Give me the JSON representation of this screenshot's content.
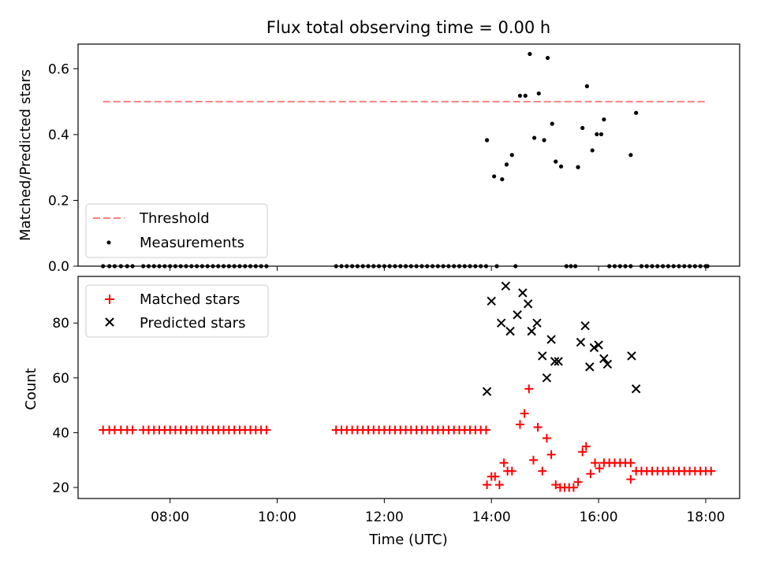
{
  "title": "Flux total observing time = 0.00 h",
  "xlabel": "Time (UTC)",
  "colors": {
    "threshold": "#ff8080",
    "measurements": "#000000",
    "matched": "#ff0000",
    "predicted": "#000000"
  },
  "chart_data": [
    {
      "type": "scatter",
      "title": "Flux total observing time = 0.00 h",
      "xlabel": "",
      "ylabel": "Matched/Predicted stars",
      "xlim": [
        "06:17",
        "18:38"
      ],
      "ylim": [
        0.0,
        0.675
      ],
      "yticks": [
        0.0,
        0.2,
        0.4,
        0.6
      ],
      "yticklabels": [
        "0.0",
        "0.2",
        "0.4",
        "0.6"
      ],
      "legend": {
        "placement": "lower-left",
        "entries": [
          "Threshold",
          "Measurements"
        ]
      },
      "threshold": {
        "name": "Threshold",
        "y": 0.5,
        "x": [
          "06:45",
          "18:00"
        ]
      },
      "series": [
        {
          "name": "Measurements",
          "points": [
            [
              "06:45",
              0
            ],
            [
              "06:52",
              0
            ],
            [
              "06:58",
              0
            ],
            [
              "07:05",
              0
            ],
            [
              "07:12",
              0
            ],
            [
              "07:18",
              0
            ],
            [
              "07:30",
              0
            ],
            [
              "07:36",
              0
            ],
            [
              "07:42",
              0
            ],
            [
              "07:48",
              0
            ],
            [
              "07:54",
              0
            ],
            [
              "08:00",
              0
            ],
            [
              "08:06",
              0
            ],
            [
              "08:12",
              0
            ],
            [
              "08:18",
              0
            ],
            [
              "08:24",
              0
            ],
            [
              "08:30",
              0
            ],
            [
              "08:36",
              0
            ],
            [
              "08:42",
              0
            ],
            [
              "08:48",
              0
            ],
            [
              "08:54",
              0
            ],
            [
              "09:00",
              0
            ],
            [
              "09:06",
              0
            ],
            [
              "09:12",
              0
            ],
            [
              "09:18",
              0
            ],
            [
              "09:24",
              0
            ],
            [
              "09:30",
              0
            ],
            [
              "09:36",
              0
            ],
            [
              "09:42",
              0
            ],
            [
              "09:48",
              0
            ],
            [
              "11:06",
              0
            ],
            [
              "11:12",
              0
            ],
            [
              "11:18",
              0
            ],
            [
              "11:24",
              0
            ],
            [
              "11:30",
              0
            ],
            [
              "11:36",
              0
            ],
            [
              "11:42",
              0
            ],
            [
              "11:48",
              0
            ],
            [
              "11:54",
              0
            ],
            [
              "12:00",
              0
            ],
            [
              "12:06",
              0
            ],
            [
              "12:12",
              0
            ],
            [
              "12:18",
              0
            ],
            [
              "12:24",
              0
            ],
            [
              "12:30",
              0
            ],
            [
              "12:36",
              0
            ],
            [
              "12:42",
              0
            ],
            [
              "12:48",
              0
            ],
            [
              "12:54",
              0
            ],
            [
              "13:00",
              0
            ],
            [
              "13:06",
              0
            ],
            [
              "13:12",
              0
            ],
            [
              "13:18",
              0
            ],
            [
              "13:24",
              0
            ],
            [
              "13:30",
              0
            ],
            [
              "13:36",
              0
            ],
            [
              "13:42",
              0
            ],
            [
              "13:48",
              0
            ],
            [
              "13:54",
              0
            ],
            [
              "13:55",
              0.383
            ],
            [
              "14:03",
              0.273
            ],
            [
              "14:06",
              0
            ],
            [
              "14:12",
              0.264
            ],
            [
              "14:17",
              0.309
            ],
            [
              "14:23",
              0.338
            ],
            [
              "14:27",
              0
            ],
            [
              "14:32",
              0.518
            ],
            [
              "14:38",
              0.518
            ],
            [
              "14:43",
              0.645
            ],
            [
              "14:48",
              0.39
            ],
            [
              "14:53",
              0.525
            ],
            [
              "14:59",
              0.383
            ],
            [
              "15:03",
              0.633
            ],
            [
              "15:08",
              0.433
            ],
            [
              "15:12",
              0.318
            ],
            [
              "15:18",
              0.303
            ],
            [
              "15:24",
              0
            ],
            [
              "15:29",
              0
            ],
            [
              "15:34",
              0
            ],
            [
              "15:37",
              0.301
            ],
            [
              "15:42",
              0.42
            ],
            [
              "15:47",
              0.547
            ],
            [
              "15:53",
              0.352
            ],
            [
              "15:58",
              0.401
            ],
            [
              "16:03",
              0.401
            ],
            [
              "16:06",
              0.446
            ],
            [
              "16:12",
              0
            ],
            [
              "16:18",
              0
            ],
            [
              "16:24",
              0
            ],
            [
              "16:30",
              0
            ],
            [
              "16:36",
              0
            ],
            [
              "16:36",
              0.338
            ],
            [
              "16:42",
              0.466
            ],
            [
              "16:48",
              0
            ],
            [
              "16:54",
              0
            ],
            [
              "17:00",
              0
            ],
            [
              "17:06",
              0
            ],
            [
              "17:12",
              0
            ],
            [
              "17:18",
              0
            ],
            [
              "17:24",
              0
            ],
            [
              "17:30",
              0
            ],
            [
              "17:36",
              0
            ],
            [
              "17:42",
              0
            ],
            [
              "17:48",
              0
            ],
            [
              "17:54",
              0
            ],
            [
              "18:00",
              0
            ],
            [
              "18:02",
              0
            ]
          ]
        }
      ]
    },
    {
      "type": "scatter",
      "title": "",
      "xlabel": "Time (UTC)",
      "ylabel": "Count",
      "xlim": [
        "06:17",
        "18:38"
      ],
      "ylim": [
        16,
        97
      ],
      "xticks": [
        "08:00",
        "10:00",
        "12:00",
        "14:00",
        "16:00",
        "18:00"
      ],
      "xticklabels": [
        "08:00",
        "10:00",
        "12:00",
        "14:00",
        "16:00",
        "18:00"
      ],
      "yticks": [
        20,
        40,
        60,
        80
      ],
      "yticklabels": [
        "20",
        "40",
        "60",
        "80"
      ],
      "legend": {
        "placement": "upper-left",
        "entries": [
          "Matched stars",
          "Predicted stars"
        ]
      },
      "series": [
        {
          "name": "Matched stars",
          "points": [
            [
              "06:45",
              41
            ],
            [
              "06:52",
              41
            ],
            [
              "06:58",
              41
            ],
            [
              "07:05",
              41
            ],
            [
              "07:12",
              41
            ],
            [
              "07:18",
              41
            ],
            [
              "07:30",
              41
            ],
            [
              "07:36",
              41
            ],
            [
              "07:42",
              41
            ],
            [
              "07:48",
              41
            ],
            [
              "07:54",
              41
            ],
            [
              "08:00",
              41
            ],
            [
              "08:06",
              41
            ],
            [
              "08:12",
              41
            ],
            [
              "08:18",
              41
            ],
            [
              "08:24",
              41
            ],
            [
              "08:30",
              41
            ],
            [
              "08:36",
              41
            ],
            [
              "08:42",
              41
            ],
            [
              "08:48",
              41
            ],
            [
              "08:54",
              41
            ],
            [
              "09:00",
              41
            ],
            [
              "09:06",
              41
            ],
            [
              "09:12",
              41
            ],
            [
              "09:18",
              41
            ],
            [
              "09:24",
              41
            ],
            [
              "09:30",
              41
            ],
            [
              "09:36",
              41
            ],
            [
              "09:42",
              41
            ],
            [
              "09:48",
              41
            ],
            [
              "11:06",
              41
            ],
            [
              "11:12",
              41
            ],
            [
              "11:18",
              41
            ],
            [
              "11:24",
              41
            ],
            [
              "11:30",
              41
            ],
            [
              "11:36",
              41
            ],
            [
              "11:42",
              41
            ],
            [
              "11:48",
              41
            ],
            [
              "11:54",
              41
            ],
            [
              "12:00",
              41
            ],
            [
              "12:06",
              41
            ],
            [
              "12:12",
              41
            ],
            [
              "12:18",
              41
            ],
            [
              "12:24",
              41
            ],
            [
              "12:30",
              41
            ],
            [
              "12:36",
              41
            ],
            [
              "12:42",
              41
            ],
            [
              "12:48",
              41
            ],
            [
              "12:54",
              41
            ],
            [
              "13:00",
              41
            ],
            [
              "13:06",
              41
            ],
            [
              "13:12",
              41
            ],
            [
              "13:18",
              41
            ],
            [
              "13:24",
              41
            ],
            [
              "13:30",
              41
            ],
            [
              "13:36",
              41
            ],
            [
              "13:42",
              41
            ],
            [
              "13:48",
              41
            ],
            [
              "13:54",
              41
            ],
            [
              "13:55",
              21
            ],
            [
              "14:00",
              24
            ],
            [
              "14:04",
              24
            ],
            [
              "14:09",
              21
            ],
            [
              "14:14",
              29
            ],
            [
              "14:18",
              26
            ],
            [
              "14:23",
              26
            ],
            [
              "14:32",
              43
            ],
            [
              "14:37",
              47
            ],
            [
              "14:42",
              56
            ],
            [
              "14:47",
              30
            ],
            [
              "14:52",
              42
            ],
            [
              "14:57",
              26
            ],
            [
              "15:02",
              38
            ],
            [
              "15:07",
              32
            ],
            [
              "15:12",
              21
            ],
            [
              "15:17",
              20
            ],
            [
              "15:22",
              20
            ],
            [
              "15:27",
              20
            ],
            [
              "15:32",
              20
            ],
            [
              "15:37",
              22
            ],
            [
              "15:42",
              33
            ],
            [
              "15:46",
              35
            ],
            [
              "15:51",
              25
            ],
            [
              "15:56",
              29
            ],
            [
              "16:01",
              27
            ],
            [
              "16:06",
              29
            ],
            [
              "16:12",
              29
            ],
            [
              "16:18",
              29
            ],
            [
              "16:24",
              29
            ],
            [
              "16:30",
              29
            ],
            [
              "16:36",
              29
            ],
            [
              "16:36",
              23
            ],
            [
              "16:42",
              26
            ],
            [
              "16:48",
              26
            ],
            [
              "16:54",
              26
            ],
            [
              "17:00",
              26
            ],
            [
              "17:06",
              26
            ],
            [
              "17:12",
              26
            ],
            [
              "17:18",
              26
            ],
            [
              "17:24",
              26
            ],
            [
              "17:30",
              26
            ],
            [
              "17:36",
              26
            ],
            [
              "17:42",
              26
            ],
            [
              "17:48",
              26
            ],
            [
              "17:54",
              26
            ],
            [
              "18:00",
              26
            ],
            [
              "18:06",
              26
            ]
          ]
        },
        {
          "name": "Predicted stars",
          "points": [
            [
              "13:55",
              55
            ],
            [
              "14:00",
              88
            ],
            [
              "14:11",
              80
            ],
            [
              "14:16",
              93.5
            ],
            [
              "14:21",
              77
            ],
            [
              "14:29",
              83
            ],
            [
              "14:35",
              91
            ],
            [
              "14:41",
              87
            ],
            [
              "14:45",
              77
            ],
            [
              "14:51",
              80
            ],
            [
              "14:57",
              68
            ],
            [
              "15:02",
              60
            ],
            [
              "15:07",
              74
            ],
            [
              "15:11",
              66
            ],
            [
              "15:15",
              66
            ],
            [
              "15:40",
              73
            ],
            [
              "15:45",
              79
            ],
            [
              "15:50",
              64
            ],
            [
              "15:55",
              71
            ],
            [
              "16:00",
              72
            ],
            [
              "16:06",
              67
            ],
            [
              "16:10",
              65
            ],
            [
              "16:37",
              68
            ],
            [
              "16:42",
              56
            ]
          ]
        }
      ]
    }
  ]
}
